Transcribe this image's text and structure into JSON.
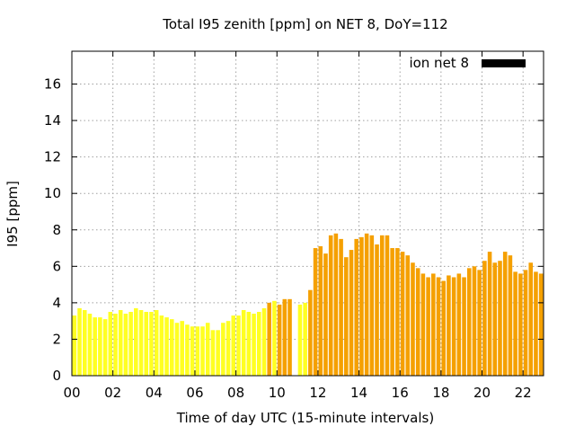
{
  "chart_data": {
    "type": "bar",
    "title": "Total I95 zenith [ppm] on NET 8, DoY=112",
    "xlabel": "Time of day UTC (15-minute intervals)",
    "ylabel": "I95 [ppm]",
    "xlim": [
      0,
      23
    ],
    "ylim": [
      0,
      17.8
    ],
    "x_ticks": [
      0,
      2,
      4,
      6,
      8,
      10,
      12,
      14,
      16,
      18,
      20,
      22
    ],
    "x_tick_labels": [
      "00",
      "02",
      "04",
      "06",
      "08",
      "10",
      "12",
      "14",
      "16",
      "18",
      "20",
      "22"
    ],
    "y_ticks": [
      0,
      2,
      4,
      6,
      8,
      10,
      12,
      14,
      16
    ],
    "y_tick_labels": [
      "0",
      "2",
      "4",
      "6",
      "8",
      "10",
      "12",
      "14",
      "16"
    ],
    "grid": true,
    "legend_position": "top-right",
    "series": [
      {
        "name": "ion net 8",
        "color": "#000000",
        "x": [
          0.125,
          0.375,
          0.625,
          0.875,
          1.125,
          1.375,
          1.625,
          1.875,
          2.125,
          2.375,
          2.625,
          2.875,
          3.125,
          3.375,
          3.625,
          3.875,
          4.125,
          4.375,
          4.625,
          4.875,
          5.125,
          5.375,
          5.625,
          5.875,
          6.125,
          6.375,
          6.625,
          6.875,
          7.125,
          7.375,
          7.625,
          7.875,
          8.125,
          8.375,
          8.625,
          8.875,
          9.125,
          9.375,
          9.625,
          9.875,
          10.125,
          10.375,
          10.625,
          10.875,
          11.125,
          11.375,
          11.625,
          11.875,
          12.125,
          12.375,
          12.625,
          12.875,
          13.125,
          13.375,
          13.625,
          13.875,
          14.125,
          14.375,
          14.625,
          14.875,
          15.125,
          15.375,
          15.625,
          15.875,
          16.125,
          16.375,
          16.625,
          16.875,
          17.125,
          17.375,
          17.625,
          17.875,
          18.125,
          18.375,
          18.625,
          18.875,
          19.125,
          19.375,
          19.625,
          19.875,
          20.125,
          20.375,
          20.625,
          20.875,
          21.125,
          21.375,
          21.625,
          21.875,
          22.125,
          22.375,
          22.625,
          22.875
        ],
        "values": [
          3.3,
          3.7,
          3.6,
          3.4,
          3.2,
          3.2,
          3.1,
          3.5,
          3.4,
          3.6,
          3.4,
          3.5,
          3.7,
          3.6,
          3.5,
          3.5,
          3.6,
          3.3,
          3.2,
          3.1,
          2.9,
          3.0,
          2.8,
          2.7,
          2.7,
          2.7,
          2.9,
          2.5,
          2.5,
          2.9,
          3.0,
          3.3,
          3.3,
          3.6,
          3.5,
          3.4,
          3.5,
          3.7,
          4.0,
          4.1,
          3.9,
          4.2,
          4.2,
          0.0,
          3.9,
          4.0,
          4.7,
          7.0,
          7.1,
          6.7,
          7.7,
          7.8,
          7.5,
          6.5,
          6.9,
          7.5,
          7.6,
          7.8,
          7.7,
          7.2,
          7.7,
          7.7,
          7.0,
          7.0,
          6.8,
          6.6,
          6.2,
          5.9,
          5.6,
          5.4,
          5.6,
          5.4,
          5.2,
          5.5,
          5.4,
          5.6,
          5.4,
          5.9,
          6.0,
          5.8,
          6.3,
          6.8,
          6.2,
          6.3,
          6.8,
          6.6,
          5.7,
          5.6,
          5.8,
          6.2,
          5.7,
          5.6
        ],
        "colors": [
          "#ffff22",
          "#ffff22",
          "#ffff22",
          "#ffff22",
          "#ffff22",
          "#ffff22",
          "#ffff22",
          "#ffff22",
          "#ffff22",
          "#ffff22",
          "#ffff22",
          "#ffff22",
          "#ffff22",
          "#ffff22",
          "#ffff22",
          "#ffff22",
          "#ffff22",
          "#ffff22",
          "#ffff22",
          "#ffff22",
          "#ffff22",
          "#ffff22",
          "#ffff22",
          "#ffff22",
          "#ffff22",
          "#ffff22",
          "#ffff22",
          "#ffff22",
          "#ffff22",
          "#ffff22",
          "#ffff22",
          "#ffff22",
          "#ffff22",
          "#ffff22",
          "#ffff22",
          "#ffff22",
          "#ffff22",
          "#ffff22",
          "#f5a000",
          "#ffff22",
          "#f5a000",
          "#f5a000",
          "#f5a000",
          "#f5a000",
          "#ffff22",
          "#ffff22",
          "#f5a000",
          "#f5a000",
          "#f5a000",
          "#f5a000",
          "#f5a000",
          "#f5a000",
          "#f5a000",
          "#f5a000",
          "#f5a000",
          "#f5a000",
          "#f5a000",
          "#f5a000",
          "#f5a000",
          "#f5a000",
          "#f5a000",
          "#f5a000",
          "#f5a000",
          "#f5a000",
          "#f5a000",
          "#f5a000",
          "#f5a000",
          "#f5a000",
          "#f5a000",
          "#f5a000",
          "#f5a000",
          "#f5a000",
          "#f5a000",
          "#f5a000",
          "#f5a000",
          "#f5a000",
          "#f5a000",
          "#f5a000",
          "#f5a000",
          "#f5a000",
          "#f5a000",
          "#f5a000",
          "#f5a000",
          "#f5a000",
          "#f5a000",
          "#f5a000",
          "#f5a000",
          "#f5a000",
          "#f5a000",
          "#f5a000",
          "#f5a000",
          "#f5a000"
        ]
      }
    ]
  }
}
